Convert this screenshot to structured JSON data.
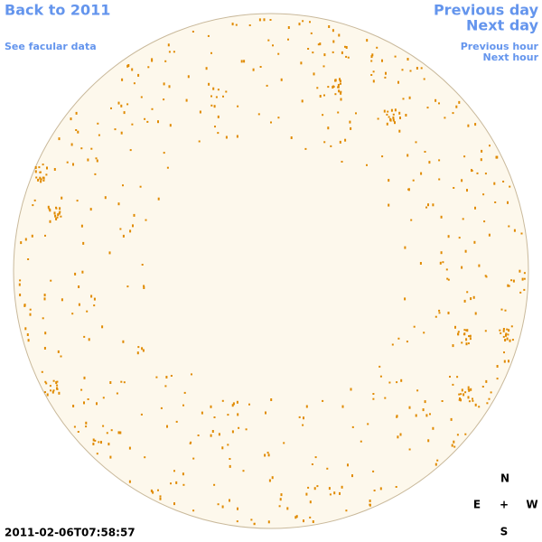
{
  "header": {
    "back": "Back to 2011",
    "facular": "See facular data"
  },
  "nav": {
    "previous_day": "Previous day",
    "next_day": "Next day",
    "previous_hour": "Previous hour",
    "next_hour": "Next hour"
  },
  "timestamp": "2011-02-06T07:58:57",
  "compass": {
    "north": "N",
    "east": "E",
    "center": "+",
    "west": "W",
    "south": "S"
  }
}
